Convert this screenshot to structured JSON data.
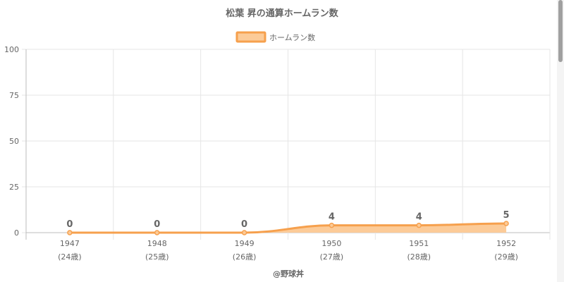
{
  "chart_data": {
    "type": "area",
    "title": "松葉 昇の通算ホームラン数",
    "series": [
      {
        "name": "ホームラン数",
        "values": [
          0,
          0,
          0,
          4,
          4,
          5
        ]
      }
    ],
    "categories": [
      "1947",
      "1948",
      "1949",
      "1950",
      "1951",
      "1952"
    ],
    "category_sublabels": [
      "(24歳)",
      "(25歳)",
      "(26歳)",
      "(27歳)",
      "(28歳)",
      "(29歳)"
    ],
    "ylim": [
      0,
      100
    ],
    "yticks": [
      "0",
      "25",
      "50",
      "75",
      "100"
    ],
    "ytick_values": [
      0,
      25,
      50,
      75,
      100
    ],
    "grid": true,
    "legend_position": "top",
    "footer": "@野球丼",
    "colors": {
      "line": "#f6a04d",
      "fill": "#fccb98",
      "grid": "#e6e6e6",
      "axis": "#bdbdbd",
      "text": "#666666"
    }
  }
}
